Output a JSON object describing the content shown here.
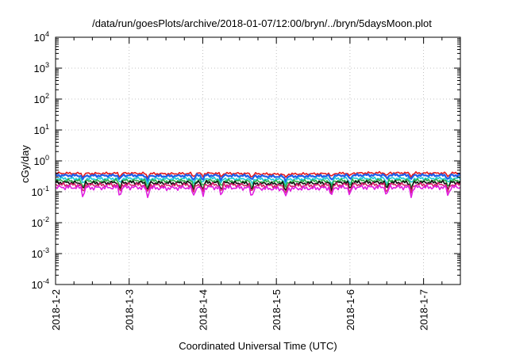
{
  "chart_data": {
    "type": "line",
    "title": "/data/run/goesPlots/archive/2018-01-07/12:00/bryn/../bryn/5daysMoon.plot",
    "xlabel": "Coordinated Universal Time (UTC)",
    "ylabel": "cGy/day",
    "yscale": "log",
    "ylim": [
      0.0001,
      10000
    ],
    "xlim": [
      "2018-01-02 00:00",
      "2018-01-07 12:00"
    ],
    "grid": true,
    "y_ticks": [
      {
        "base": "10",
        "exp": "4"
      },
      {
        "base": "10",
        "exp": "3"
      },
      {
        "base": "10",
        "exp": "2"
      },
      {
        "base": "10",
        "exp": "1"
      },
      {
        "base": "10",
        "exp": "0"
      },
      {
        "base": "10",
        "exp": "-1"
      },
      {
        "base": "10",
        "exp": "-2"
      },
      {
        "base": "10",
        "exp": "-3"
      },
      {
        "base": "10",
        "exp": "-4"
      }
    ],
    "x_ticks": [
      "2018-1-2",
      "2018-1-3",
      "2018-1-4",
      "2018-1-5",
      "2018-1-6",
      "2018-1-7"
    ],
    "x": [
      "2018-01-02 00:00",
      "2018-01-02 12:00",
      "2018-01-03 00:00",
      "2018-01-03 12:00",
      "2018-01-04 00:00",
      "2018-01-04 12:00",
      "2018-01-05 00:00",
      "2018-01-05 12:00",
      "2018-01-06 00:00",
      "2018-01-06 12:00",
      "2018-01-07 00:00",
      "2018-01-07 12:00"
    ],
    "series": [
      {
        "color": "#e41a1c",
        "values": [
          0.4,
          0.39,
          0.4,
          0.38,
          0.4,
          0.39,
          0.37,
          0.38,
          0.4,
          0.41,
          0.4,
          0.4
        ]
      },
      {
        "color": "#1f5fe8",
        "values": [
          0.34,
          0.33,
          0.34,
          0.32,
          0.34,
          0.33,
          0.31,
          0.32,
          0.34,
          0.35,
          0.34,
          0.34
        ]
      },
      {
        "color": "#1ec8d8",
        "values": [
          0.27,
          0.26,
          0.27,
          0.26,
          0.27,
          0.26,
          0.25,
          0.26,
          0.27,
          0.27,
          0.27,
          0.27
        ]
      },
      {
        "color": "#2fae4a",
        "values": [
          0.23,
          0.22,
          0.23,
          0.22,
          0.23,
          0.22,
          0.21,
          0.22,
          0.23,
          0.23,
          0.23,
          0.23
        ]
      },
      {
        "color": "#111111",
        "values": [
          0.2,
          0.19,
          0.2,
          0.19,
          0.2,
          0.19,
          0.18,
          0.19,
          0.2,
          0.2,
          0.2,
          0.2
        ]
      },
      {
        "color": "#d4246a",
        "values": [
          0.17,
          0.165,
          0.17,
          0.16,
          0.17,
          0.165,
          0.155,
          0.16,
          0.17,
          0.17,
          0.17,
          0.17
        ]
      },
      {
        "color": "#e020e0",
        "values": [
          0.14,
          0.135,
          0.14,
          0.13,
          0.14,
          0.135,
          0.125,
          0.13,
          0.14,
          0.14,
          0.14,
          0.14
        ]
      }
    ],
    "dips": [
      "2018-01-02 09:00",
      "2018-01-02 21:00",
      "2018-01-03 06:00",
      "2018-01-03 21:00",
      "2018-01-04 00:00",
      "2018-01-04 06:00",
      "2018-01-04 16:00",
      "2018-01-05 03:00",
      "2018-01-05 18:00",
      "2018-01-06 00:00",
      "2018-01-06 12:00",
      "2018-01-06 20:00",
      "2018-01-07 08:00"
    ]
  }
}
